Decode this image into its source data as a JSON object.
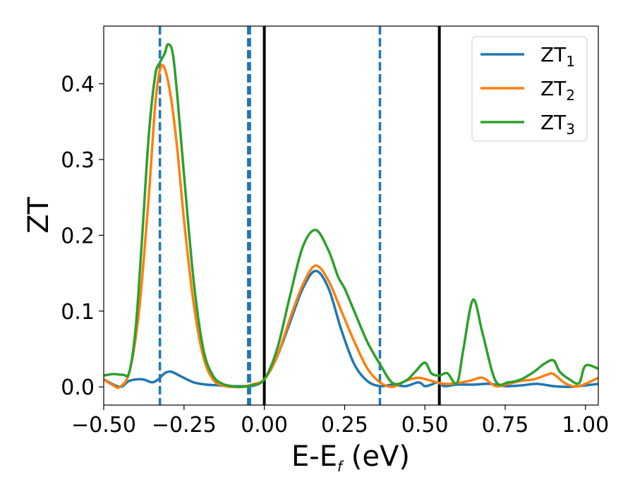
{
  "chart_data": {
    "type": "line",
    "xlabel_main": "E-E",
    "xlabel_sub": "f",
    "xlabel_unit": " (eV)",
    "ylabel": "ZT",
    "xlim": [
      -0.5,
      1.04
    ],
    "ylim": [
      -0.024,
      0.476
    ],
    "xticks": [
      -0.5,
      -0.25,
      0.0,
      0.25,
      0.5,
      0.75,
      1.0
    ],
    "xtick_labels": [
      "−0.50",
      "−0.25",
      "0.00",
      "0.25",
      "0.50",
      "0.75",
      "1.00"
    ],
    "yticks": [
      0.0,
      0.1,
      0.2,
      0.3,
      0.4
    ],
    "ytick_labels": [
      "0.0",
      "0.1",
      "0.2",
      "0.3",
      "0.4"
    ],
    "grid": false,
    "legend_position": "top-right",
    "vlines": [
      {
        "x": -0.325,
        "style": "dashed",
        "color": "#1f77b4"
      },
      {
        "x": -0.045,
        "style": "dashed",
        "color": "#1f77b4"
      },
      {
        "x": 0.36,
        "style": "dashed",
        "color": "#1f77b4"
      },
      {
        "x": 0.0,
        "style": "solid",
        "color": "#000000"
      },
      {
        "x": 0.545,
        "style": "solid",
        "color": "#000000"
      }
    ],
    "series": [
      {
        "name": "ZT",
        "name_sub": "1",
        "color": "#1f77b4",
        "x": [
          -0.5,
          -0.45,
          -0.42,
          -0.38,
          -0.35,
          -0.33,
          -0.31,
          -0.29,
          -0.26,
          -0.22,
          -0.18,
          -0.14,
          -0.1,
          -0.06,
          -0.03,
          0.0,
          0.04,
          0.08,
          0.12,
          0.16,
          0.2,
          0.24,
          0.28,
          0.32,
          0.36,
          0.4,
          0.44,
          0.48,
          0.5,
          0.52,
          0.54,
          0.56,
          0.6,
          0.65,
          0.7,
          0.75,
          0.8,
          0.85,
          0.9,
          0.95,
          1.0,
          1.04
        ],
        "y": [
          0.01,
          0.0,
          0.008,
          0.01,
          0.006,
          0.01,
          0.018,
          0.02,
          0.014,
          0.006,
          0.003,
          0.002,
          0.001,
          0.001,
          0.002,
          0.01,
          0.04,
          0.085,
          0.13,
          0.153,
          0.13,
          0.075,
          0.03,
          0.008,
          0.001,
          0.003,
          0.001,
          0.006,
          0.001,
          0.003,
          0.006,
          0.001,
          0.003,
          0.003,
          0.004,
          0.001,
          0.002,
          0.004,
          0.001,
          0.0,
          0.002,
          0.004
        ]
      },
      {
        "name": "ZT",
        "name_sub": "2",
        "color": "#ff7f0e",
        "x": [
          -0.5,
          -0.47,
          -0.45,
          -0.42,
          -0.39,
          -0.36,
          -0.34,
          -0.325,
          -0.31,
          -0.29,
          -0.27,
          -0.25,
          -0.22,
          -0.19,
          -0.16,
          -0.13,
          -0.1,
          -0.07,
          -0.04,
          0.0,
          0.04,
          0.08,
          0.12,
          0.16,
          0.2,
          0.24,
          0.28,
          0.32,
          0.36,
          0.4,
          0.44,
          0.48,
          0.52,
          0.56,
          0.6,
          0.64,
          0.68,
          0.72,
          0.76,
          0.8,
          0.84,
          0.88,
          0.9,
          0.94,
          0.98,
          1.04
        ],
        "y": [
          0.01,
          0.002,
          0.0,
          0.02,
          0.1,
          0.25,
          0.37,
          0.418,
          0.42,
          0.38,
          0.31,
          0.22,
          0.11,
          0.04,
          0.01,
          0.002,
          0.0,
          0.0,
          0.003,
          0.01,
          0.04,
          0.09,
          0.135,
          0.16,
          0.14,
          0.1,
          0.06,
          0.025,
          0.006,
          0.0,
          0.008,
          0.012,
          0.008,
          0.004,
          0.005,
          0.008,
          0.012,
          0.001,
          0.004,
          0.008,
          0.01,
          0.016,
          0.017,
          0.004,
          0.001,
          0.012
        ]
      },
      {
        "name": "ZT",
        "name_sub": "3",
        "color": "#2ca02c",
        "x": [
          -0.5,
          -0.47,
          -0.44,
          -0.42,
          -0.4,
          -0.38,
          -0.36,
          -0.34,
          -0.325,
          -0.31,
          -0.3,
          -0.285,
          -0.27,
          -0.25,
          -0.22,
          -0.19,
          -0.16,
          -0.13,
          -0.1,
          -0.07,
          -0.04,
          0.0,
          0.04,
          0.08,
          0.12,
          0.16,
          0.2,
          0.23,
          0.25,
          0.28,
          0.32,
          0.36,
          0.4,
          0.44,
          0.47,
          0.5,
          0.52,
          0.545,
          0.57,
          0.6,
          0.62,
          0.65,
          0.68,
          0.72,
          0.76,
          0.8,
          0.84,
          0.87,
          0.9,
          0.92,
          0.95,
          0.98,
          1.0,
          1.04
        ],
        "y": [
          0.015,
          0.017,
          0.016,
          0.02,
          0.08,
          0.2,
          0.33,
          0.41,
          0.428,
          0.44,
          0.452,
          0.44,
          0.38,
          0.28,
          0.14,
          0.05,
          0.015,
          0.004,
          0.001,
          0.0,
          0.002,
          0.01,
          0.05,
          0.12,
          0.185,
          0.207,
          0.18,
          0.145,
          0.13,
          0.1,
          0.06,
          0.03,
          0.005,
          0.008,
          0.02,
          0.032,
          0.018,
          0.015,
          0.018,
          0.005,
          0.05,
          0.115,
          0.07,
          0.008,
          0.006,
          0.01,
          0.02,
          0.03,
          0.035,
          0.02,
          0.01,
          0.005,
          0.028,
          0.024
        ]
      }
    ]
  }
}
